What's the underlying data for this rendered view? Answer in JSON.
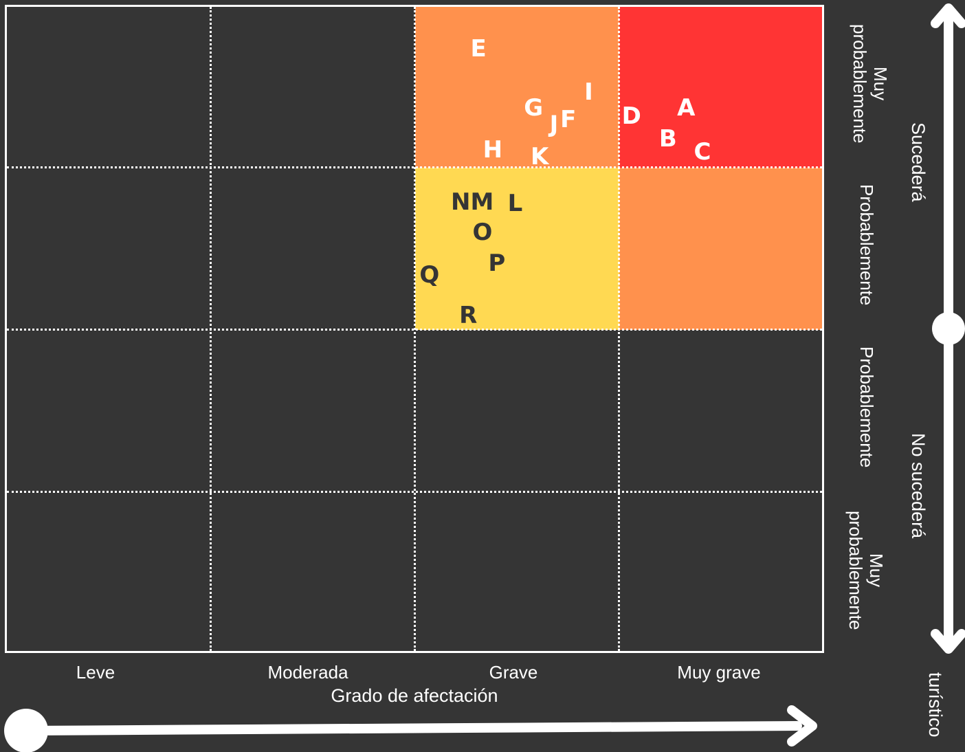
{
  "matrix": {
    "columns": [
      "Leve",
      "Moderada",
      "Grave",
      "Muy grave"
    ],
    "rows_top_to_bottom": [
      "Muy probablemente",
      "Probablemente",
      "Probablemente",
      "Muy probablemente"
    ],
    "x_axis_title": "Grado de afectación",
    "y_group_top": "Sucederá",
    "y_group_bottom": "No sucederá",
    "y_axis_fragment": "turístico",
    "colors": {
      "background": "#353535",
      "high": "#ff3434",
      "medium": "#ff914d",
      "low": "#ffd952",
      "grid": "#ffffff"
    },
    "highlighted_cells": [
      {
        "row": 0,
        "col": 2,
        "level": "medium"
      },
      {
        "row": 0,
        "col": 3,
        "level": "high"
      },
      {
        "row": 1,
        "col": 2,
        "level": "low"
      },
      {
        "row": 1,
        "col": 3,
        "level": "medium"
      }
    ],
    "risks": [
      {
        "label": "E",
        "row": 0,
        "col": 2,
        "fx": 0.31,
        "fy": 0.26,
        "color": "#ffffff"
      },
      {
        "label": "I",
        "row": 0,
        "col": 2,
        "fx": 0.85,
        "fy": 0.53,
        "color": "#ffffff"
      },
      {
        "label": "G",
        "row": 0,
        "col": 2,
        "fx": 0.58,
        "fy": 0.63,
        "color": "#ffffff"
      },
      {
        "label": "J",
        "row": 0,
        "col": 2,
        "fx": 0.68,
        "fy": 0.73,
        "color": "#ffffff"
      },
      {
        "label": "F",
        "row": 0,
        "col": 2,
        "fx": 0.75,
        "fy": 0.7,
        "color": "#ffffff"
      },
      {
        "label": "H",
        "row": 0,
        "col": 2,
        "fx": 0.38,
        "fy": 0.89,
        "color": "#ffffff"
      },
      {
        "label": "K",
        "row": 0,
        "col": 2,
        "fx": 0.61,
        "fy": 0.93,
        "color": "#ffffff"
      },
      {
        "label": "D",
        "row": 0,
        "col": 3,
        "fx": 0.06,
        "fy": 0.68,
        "color": "#ffffff"
      },
      {
        "label": "A",
        "row": 0,
        "col": 3,
        "fx": 0.33,
        "fy": 0.63,
        "color": "#ffffff"
      },
      {
        "label": "B",
        "row": 0,
        "col": 3,
        "fx": 0.24,
        "fy": 0.82,
        "color": "#ffffff"
      },
      {
        "label": "C",
        "row": 0,
        "col": 3,
        "fx": 0.41,
        "fy": 0.9,
        "color": "#ffffff"
      },
      {
        "label": "NM",
        "row": 1,
        "col": 2,
        "fx": 0.28,
        "fy": 0.21,
        "color": "#353535"
      },
      {
        "label": "L",
        "row": 1,
        "col": 2,
        "fx": 0.49,
        "fy": 0.22,
        "color": "#353535"
      },
      {
        "label": "O",
        "row": 1,
        "col": 2,
        "fx": 0.33,
        "fy": 0.4,
        "color": "#353535"
      },
      {
        "label": "P",
        "row": 1,
        "col": 2,
        "fx": 0.4,
        "fy": 0.59,
        "color": "#353535"
      },
      {
        "label": "Q",
        "row": 1,
        "col": 2,
        "fx": 0.07,
        "fy": 0.66,
        "color": "#353535"
      },
      {
        "label": "R",
        "row": 1,
        "col": 2,
        "fx": 0.26,
        "fy": 0.91,
        "color": "#353535"
      }
    ]
  }
}
